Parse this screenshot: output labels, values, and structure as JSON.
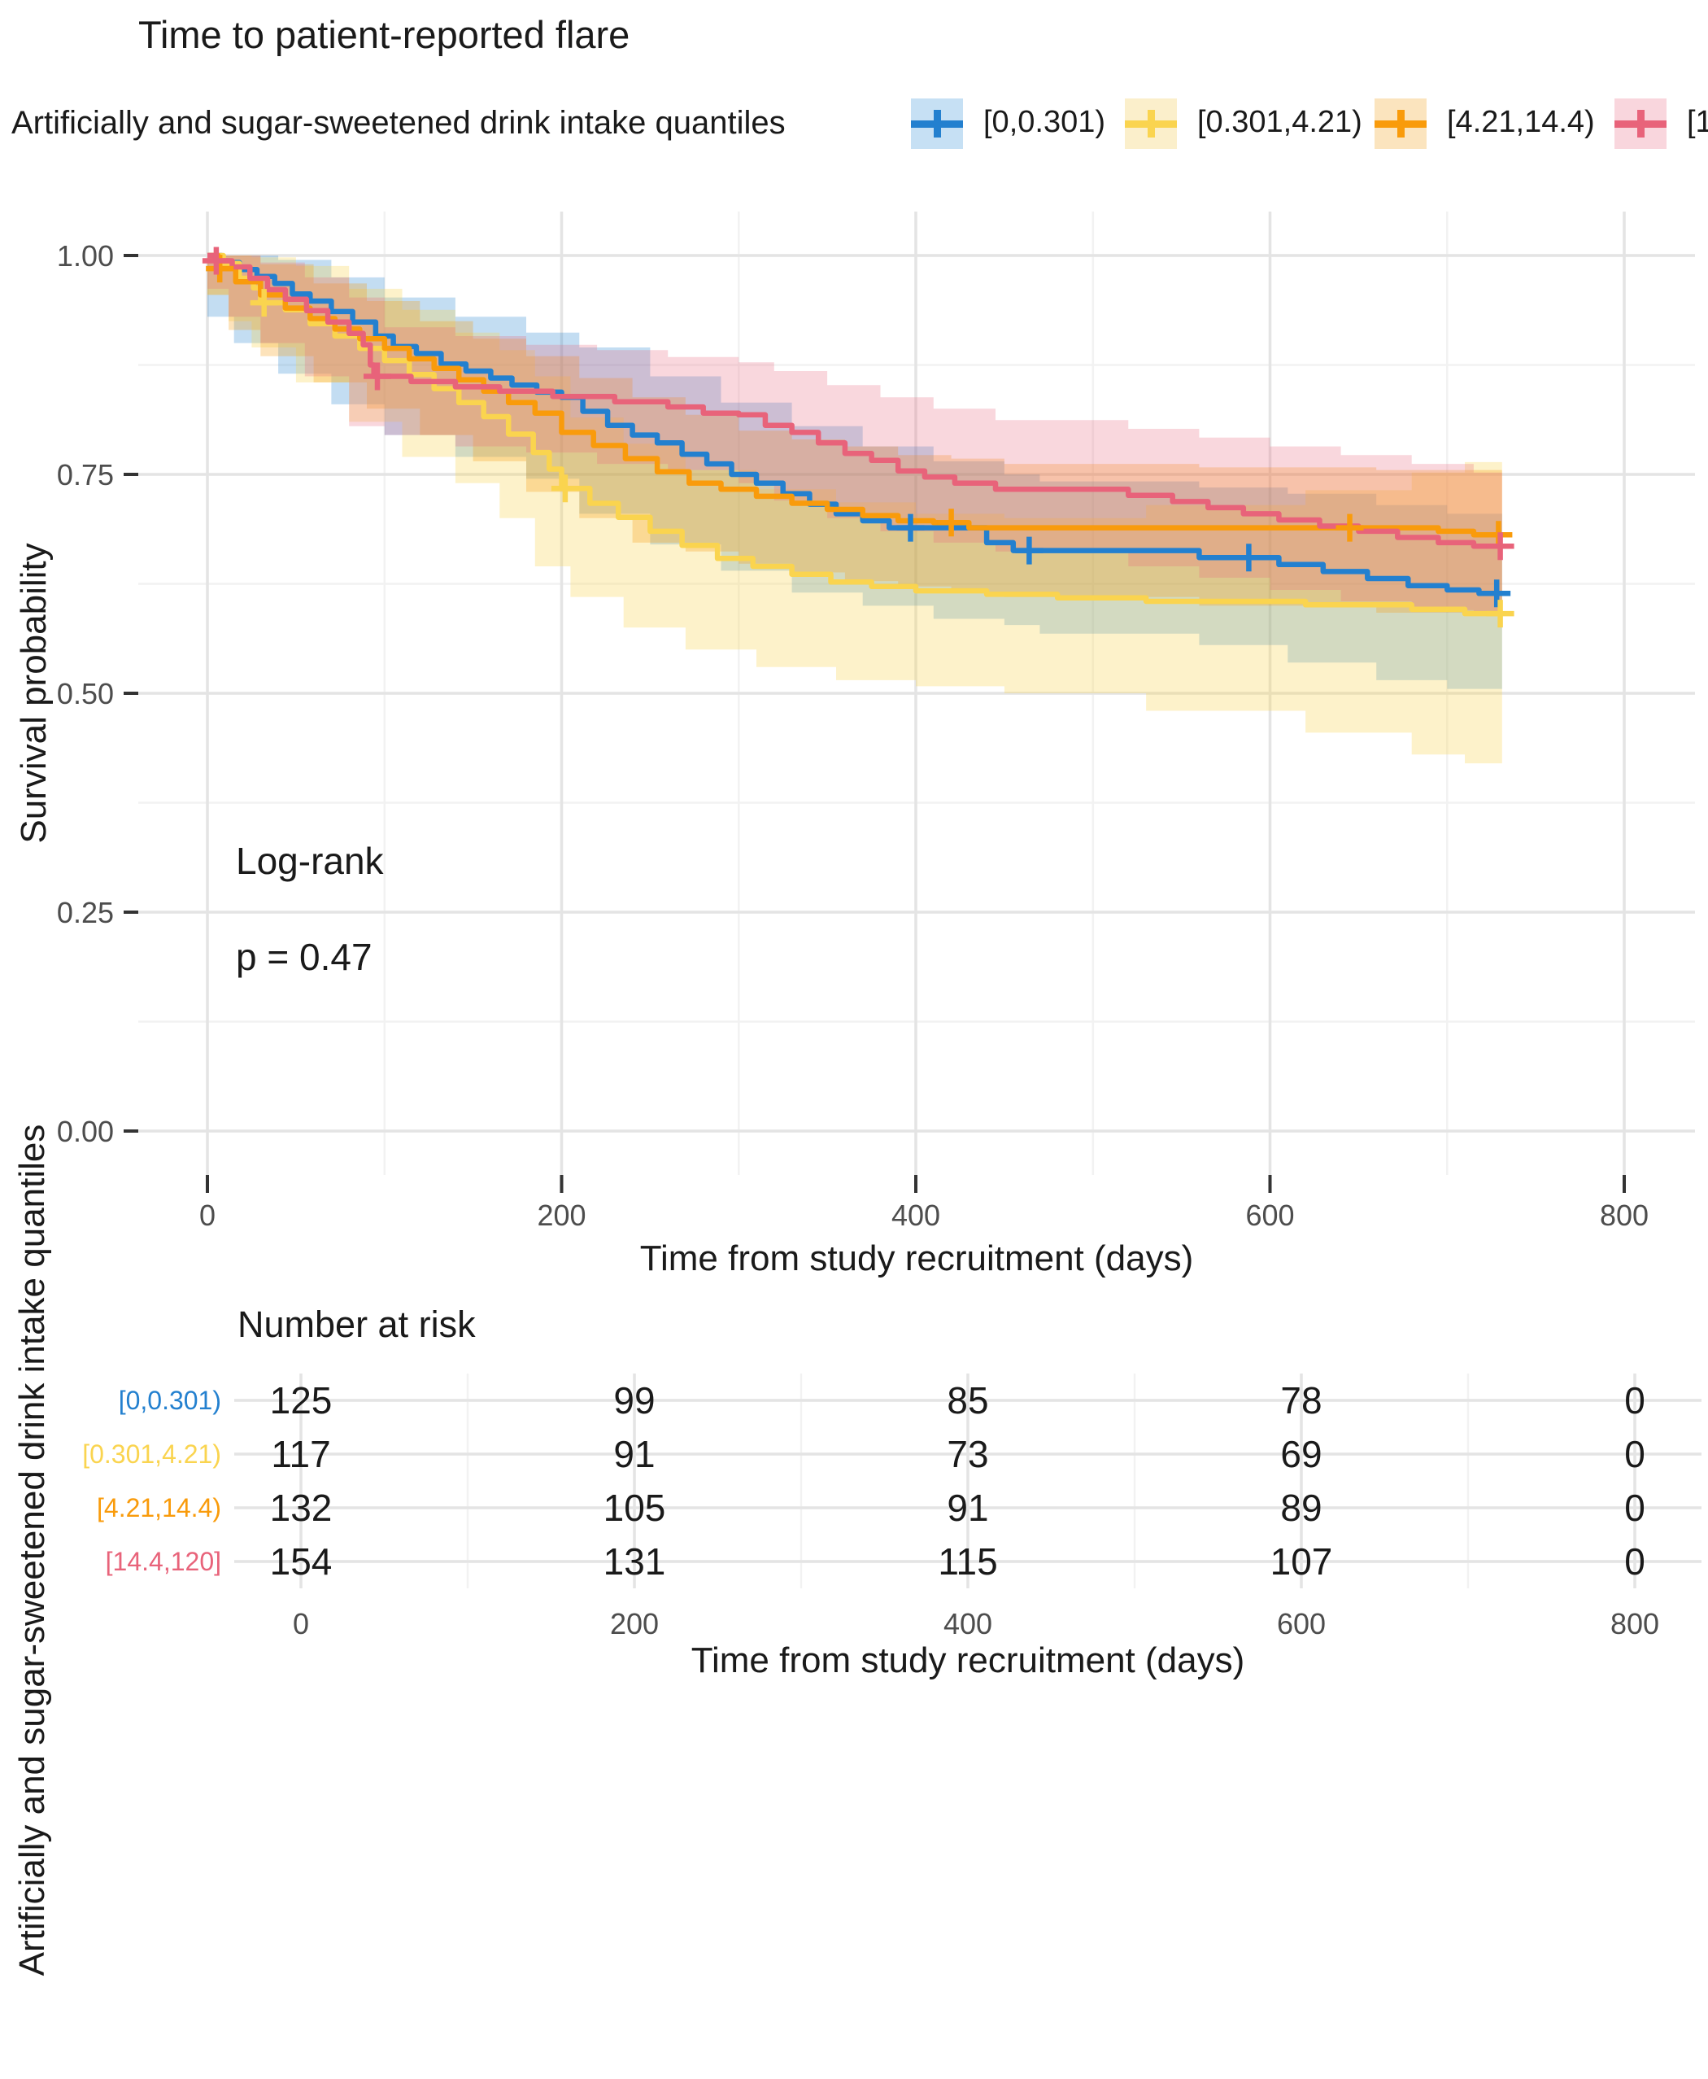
{
  "chart_data": {
    "type": "line",
    "variant": "kaplan-meier-survival-with-ci-ribbons",
    "title": "Time to patient-reported flare",
    "legend_title": "Artificially and sugar-sweetened drink intake quantiles",
    "legend_position": "top",
    "xlabel": "Time from study recruitment (days)",
    "ylabel": "Survival probability",
    "xlim": [
      0,
      800
    ],
    "ylim": [
      0,
      1
    ],
    "x_ticks": [
      0,
      200,
      400,
      600,
      800
    ],
    "x_tick_labels": [
      "0",
      "200",
      "400",
      "600",
      "800"
    ],
    "y_ticks": [
      1,
      0.75,
      0.5,
      0.25,
      0
    ],
    "y_tick_labels": [
      "1.00",
      "0.75",
      "0.50",
      "0.25",
      "0.00"
    ],
    "x_minor": [
      100,
      300,
      500,
      700
    ],
    "y_minor": [
      0.125,
      0.375,
      0.625,
      0.875
    ],
    "grid": true,
    "annotations": {
      "stat_test": "Log-rank",
      "p_value": "p = 0.47"
    },
    "groups": [
      {
        "name": "[0,0.301)",
        "color": "#2380CF",
        "key_fill": "#C6E0F4",
        "ribbon_alpha": 0.27,
        "steps": [
          [
            0,
            1
          ],
          [
            8,
            0.992
          ],
          [
            18,
            0.984
          ],
          [
            28,
            0.976
          ],
          [
            38,
            0.968
          ],
          [
            48,
            0.956
          ],
          [
            58,
            0.948
          ],
          [
            70,
            0.936
          ],
          [
            82,
            0.924
          ],
          [
            95,
            0.908
          ],
          [
            105,
            0.896
          ],
          [
            118,
            0.888
          ],
          [
            132,
            0.876
          ],
          [
            146,
            0.868
          ],
          [
            160,
            0.86
          ],
          [
            172,
            0.852
          ],
          [
            186,
            0.844
          ],
          [
            200,
            0.838
          ],
          [
            212,
            0.822
          ],
          [
            226,
            0.806
          ],
          [
            240,
            0.795
          ],
          [
            254,
            0.786
          ],
          [
            268,
            0.773
          ],
          [
            282,
            0.762
          ],
          [
            296,
            0.75
          ],
          [
            310,
            0.74
          ],
          [
            325,
            0.728
          ],
          [
            340,
            0.716
          ],
          [
            355,
            0.705
          ],
          [
            370,
            0.697
          ],
          [
            385,
            0.689
          ],
          [
            440,
            0.672
          ],
          [
            455,
            0.663
          ],
          [
            560,
            0.655
          ],
          [
            605,
            0.647
          ],
          [
            630,
            0.639
          ],
          [
            655,
            0.631
          ],
          [
            678,
            0.623
          ],
          [
            700,
            0.618
          ],
          [
            718,
            0.614
          ],
          [
            731,
            0.614
          ]
        ],
        "ci": [
          [
            0,
            1,
            1
          ],
          [
            15,
            0.93,
            1
          ],
          [
            40,
            0.9,
            0.995
          ],
          [
            70,
            0.865,
            0.975
          ],
          [
            100,
            0.83,
            0.952
          ],
          [
            140,
            0.795,
            0.93
          ],
          [
            180,
            0.77,
            0.912
          ],
          [
            210,
            0.745,
            0.895
          ],
          [
            250,
            0.705,
            0.862
          ],
          [
            290,
            0.67,
            0.832
          ],
          [
            330,
            0.64,
            0.805
          ],
          [
            370,
            0.615,
            0.782
          ],
          [
            410,
            0.6,
            0.765
          ],
          [
            450,
            0.585,
            0.75
          ],
          [
            470,
            0.578,
            0.742
          ],
          [
            560,
            0.568,
            0.735
          ],
          [
            610,
            0.555,
            0.728
          ],
          [
            660,
            0.535,
            0.715
          ],
          [
            700,
            0.515,
            0.705
          ],
          [
            731,
            0.505,
            0.7
          ]
        ],
        "censors": [
          [
            397,
            0.689
          ],
          [
            464,
            0.663
          ],
          [
            588,
            0.655
          ],
          [
            728,
            0.614
          ]
        ]
      },
      {
        "name": "[0.301,4.21)",
        "color": "#FAD44F",
        "key_fill": "#FBEFCB",
        "ribbon_alpha": 0.3,
        "steps": [
          [
            0,
            1
          ],
          [
            9,
            0.991
          ],
          [
            18,
            0.974
          ],
          [
            26,
            0.963
          ],
          [
            30,
            0.946
          ],
          [
            44,
            0.938
          ],
          [
            58,
            0.922
          ],
          [
            72,
            0.908
          ],
          [
            86,
            0.894
          ],
          [
            100,
            0.88
          ],
          [
            114,
            0.864
          ],
          [
            128,
            0.848
          ],
          [
            142,
            0.832
          ],
          [
            156,
            0.816
          ],
          [
            170,
            0.796
          ],
          [
            184,
            0.775
          ],
          [
            193,
            0.756
          ],
          [
            200,
            0.734
          ],
          [
            216,
            0.717
          ],
          [
            232,
            0.701
          ],
          [
            250,
            0.685
          ],
          [
            268,
            0.669
          ],
          [
            288,
            0.654
          ],
          [
            308,
            0.645
          ],
          [
            330,
            0.636
          ],
          [
            352,
            0.627
          ],
          [
            375,
            0.622
          ],
          [
            400,
            0.617
          ],
          [
            440,
            0.613
          ],
          [
            480,
            0.609
          ],
          [
            530,
            0.605
          ],
          [
            620,
            0.601
          ],
          [
            680,
            0.596
          ],
          [
            710,
            0.591
          ],
          [
            731,
            0.591
          ]
        ],
        "ci": [
          [
            0,
            1,
            1
          ],
          [
            12,
            0.955,
            1
          ],
          [
            25,
            0.925,
            0.998
          ],
          [
            50,
            0.895,
            0.988
          ],
          [
            80,
            0.855,
            0.962
          ],
          [
            110,
            0.81,
            0.938
          ],
          [
            140,
            0.77,
            0.912
          ],
          [
            165,
            0.74,
            0.892
          ],
          [
            185,
            0.7,
            0.862
          ],
          [
            205,
            0.645,
            0.815
          ],
          [
            235,
            0.61,
            0.785
          ],
          [
            270,
            0.575,
            0.755
          ],
          [
            310,
            0.55,
            0.733
          ],
          [
            355,
            0.53,
            0.718
          ],
          [
            400,
            0.515,
            0.705
          ],
          [
            450,
            0.508,
            0.7
          ],
          [
            530,
            0.5,
            0.715
          ],
          [
            620,
            0.48,
            0.732
          ],
          [
            680,
            0.455,
            0.752
          ],
          [
            710,
            0.43,
            0.764
          ],
          [
            731,
            0.42,
            0.77
          ]
        ],
        "censors": [
          [
            32,
            0.946
          ],
          [
            202,
            0.734
          ],
          [
            730,
            0.591
          ]
        ]
      },
      {
        "name": "[4.21,14.4)",
        "color": "#F99B0B",
        "key_fill": "#FBE4BE",
        "ribbon_alpha": 0.28,
        "steps": [
          [
            0,
            1
          ],
          [
            6,
            0.985
          ],
          [
            16,
            0.97
          ],
          [
            30,
            0.955
          ],
          [
            44,
            0.94
          ],
          [
            58,
            0.928
          ],
          [
            72,
            0.916
          ],
          [
            86,
            0.905
          ],
          [
            100,
            0.894
          ],
          [
            114,
            0.882
          ],
          [
            128,
            0.871
          ],
          [
            142,
            0.858
          ],
          [
            156,
            0.845
          ],
          [
            170,
            0.832
          ],
          [
            185,
            0.82
          ],
          [
            200,
            0.798
          ],
          [
            218,
            0.783
          ],
          [
            236,
            0.768
          ],
          [
            254,
            0.753
          ],
          [
            272,
            0.74
          ],
          [
            290,
            0.733
          ],
          [
            310,
            0.725
          ],
          [
            330,
            0.717
          ],
          [
            350,
            0.71
          ],
          [
            370,
            0.703
          ],
          [
            390,
            0.697
          ],
          [
            410,
            0.695
          ],
          [
            430,
            0.689
          ],
          [
            695,
            0.685
          ],
          [
            715,
            0.681
          ],
          [
            731,
            0.681
          ]
        ],
        "ci": [
          [
            0,
            1,
            1
          ],
          [
            12,
            0.955,
            1
          ],
          [
            30,
            0.915,
            0.99
          ],
          [
            60,
            0.885,
            0.968
          ],
          [
            90,
            0.855,
            0.948
          ],
          [
            120,
            0.825,
            0.925
          ],
          [
            150,
            0.795,
            0.905
          ],
          [
            180,
            0.765,
            0.885
          ],
          [
            210,
            0.73,
            0.86
          ],
          [
            240,
            0.7,
            0.838
          ],
          [
            270,
            0.672,
            0.818
          ],
          [
            300,
            0.662,
            0.8
          ],
          [
            330,
            0.648,
            0.79
          ],
          [
            360,
            0.638,
            0.782
          ],
          [
            390,
            0.628,
            0.772
          ],
          [
            420,
            0.622,
            0.768
          ],
          [
            450,
            0.615,
            0.762
          ],
          [
            560,
            0.61,
            0.758
          ],
          [
            660,
            0.6,
            0.755
          ],
          [
            731,
            0.592,
            0.755
          ]
        ],
        "censors": [
          [
            7,
            0.985
          ],
          [
            420,
            0.695
          ],
          [
            645,
            0.689
          ],
          [
            729,
            0.681
          ]
        ]
      },
      {
        "name": "[14.4,120]",
        "color": "#E8637A",
        "key_fill": "#F9D6DD",
        "ribbon_alpha": 0.26,
        "steps": [
          [
            0,
            1
          ],
          [
            4,
            0.994
          ],
          [
            14,
            0.987
          ],
          [
            24,
            0.974
          ],
          [
            34,
            0.961
          ],
          [
            44,
            0.95
          ],
          [
            56,
            0.937
          ],
          [
            68,
            0.924
          ],
          [
            80,
            0.911
          ],
          [
            88,
            0.898
          ],
          [
            92,
            0.875
          ],
          [
            94,
            0.862
          ],
          [
            115,
            0.856
          ],
          [
            140,
            0.85
          ],
          [
            165,
            0.845
          ],
          [
            195,
            0.839
          ],
          [
            230,
            0.833
          ],
          [
            260,
            0.827
          ],
          [
            280,
            0.82
          ],
          [
            300,
            0.818
          ],
          [
            315,
            0.806
          ],
          [
            330,
            0.798
          ],
          [
            345,
            0.786
          ],
          [
            360,
            0.774
          ],
          [
            375,
            0.766
          ],
          [
            390,
            0.754
          ],
          [
            405,
            0.747
          ],
          [
            422,
            0.74
          ],
          [
            445,
            0.733
          ],
          [
            520,
            0.726
          ],
          [
            545,
            0.719
          ],
          [
            565,
            0.712
          ],
          [
            585,
            0.705
          ],
          [
            605,
            0.698
          ],
          [
            628,
            0.691
          ],
          [
            650,
            0.685
          ],
          [
            672,
            0.678
          ],
          [
            695,
            0.672
          ],
          [
            715,
            0.668
          ],
          [
            731,
            0.668
          ]
        ],
        "ci": [
          [
            0,
            1,
            1
          ],
          [
            12,
            0.962,
            1
          ],
          [
            30,
            0.93,
            0.992
          ],
          [
            55,
            0.9,
            0.975
          ],
          [
            80,
            0.862,
            0.952
          ],
          [
            100,
            0.805,
            0.918
          ],
          [
            140,
            0.795,
            0.908
          ],
          [
            180,
            0.782,
            0.898
          ],
          [
            220,
            0.775,
            0.892
          ],
          [
            260,
            0.762,
            0.884
          ],
          [
            300,
            0.755,
            0.878
          ],
          [
            320,
            0.74,
            0.868
          ],
          [
            350,
            0.72,
            0.852
          ],
          [
            380,
            0.7,
            0.838
          ],
          [
            410,
            0.685,
            0.825
          ],
          [
            445,
            0.672,
            0.812
          ],
          [
            520,
            0.662,
            0.802
          ],
          [
            560,
            0.645,
            0.792
          ],
          [
            600,
            0.632,
            0.782
          ],
          [
            640,
            0.618,
            0.772
          ],
          [
            680,
            0.605,
            0.762
          ],
          [
            715,
            0.595,
            0.752
          ],
          [
            731,
            0.592,
            0.75
          ]
        ],
        "censors": [
          [
            5,
            0.994
          ],
          [
            96,
            0.862
          ],
          [
            730,
            0.668
          ]
        ]
      }
    ],
    "risk_table": {
      "title": "Number at risk",
      "axis_label": "Artificially and sugar-sweetened drink intake quantiles",
      "xlabel": "Time from study recruitment (days)",
      "times": [
        0,
        200,
        400,
        600,
        800
      ],
      "rows": [
        {
          "label": "[0,0.301)",
          "counts": [
            125,
            99,
            85,
            78,
            0
          ]
        },
        {
          "label": "[0.301,4.21)",
          "counts": [
            117,
            91,
            73,
            69,
            0
          ]
        },
        {
          "label": "[4.21,14.4)",
          "counts": [
            132,
            105,
            91,
            89,
            0
          ]
        },
        {
          "label": "[14.4,120]",
          "counts": [
            154,
            131,
            115,
            107,
            0
          ]
        }
      ]
    }
  },
  "colors": {
    "background": "#FFFFFF",
    "text": "#1A1A1A",
    "tick_label": "#4D4D4D",
    "grid_major": "#E4E4E4",
    "grid_minor": "#F2F2F2",
    "tick_mark": "#333333"
  }
}
